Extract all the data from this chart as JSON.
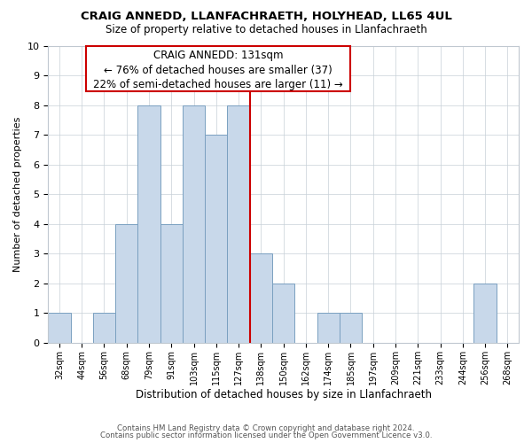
{
  "title": "CRAIG ANNEDD, LLANFACHRAETH, HOLYHEAD, LL65 4UL",
  "subtitle": "Size of property relative to detached houses in Llanfachraeth",
  "xlabel": "Distribution of detached houses by size in Llanfachraeth",
  "ylabel": "Number of detached properties",
  "bin_labels": [
    "32sqm",
    "44sqm",
    "56sqm",
    "68sqm",
    "79sqm",
    "91sqm",
    "103sqm",
    "115sqm",
    "127sqm",
    "138sqm",
    "150sqm",
    "162sqm",
    "174sqm",
    "185sqm",
    "197sqm",
    "209sqm",
    "221sqm",
    "233sqm",
    "244sqm",
    "256sqm",
    "268sqm"
  ],
  "bar_heights": [
    1,
    0,
    1,
    4,
    8,
    4,
    8,
    7,
    8,
    3,
    2,
    0,
    1,
    1,
    0,
    0,
    0,
    0,
    0,
    2,
    0
  ],
  "bar_color": "#c8d8ea",
  "bar_edge_color": "#7aa0c0",
  "ylim": [
    0,
    10
  ],
  "yticks": [
    0,
    1,
    2,
    3,
    4,
    5,
    6,
    7,
    8,
    9,
    10
  ],
  "annotation_title": "CRAIG ANNEDD: 131sqm",
  "annotation_line1": "← 76% of detached houses are smaller (37)",
  "annotation_line2": "22% of semi-detached houses are larger (11) →",
  "annotation_box_color": "#ffffff",
  "annotation_box_edge": "#cc0000",
  "vline_color": "#cc0000",
  "footer_line1": "Contains HM Land Registry data © Crown copyright and database right 2024.",
  "footer_line2": "Contains public sector information licensed under the Open Government Licence v3.0.",
  "vline_bin_index": 8
}
